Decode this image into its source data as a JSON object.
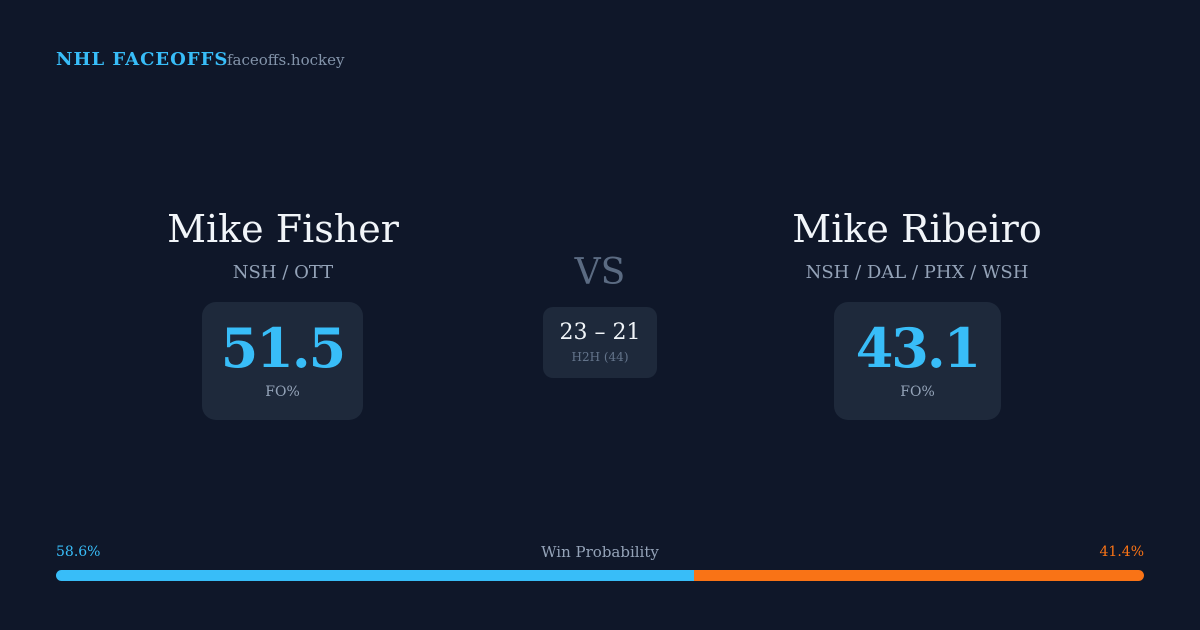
{
  "header": {
    "brand": "NHL FACEOFFS",
    "site": "faceoffs.hockey"
  },
  "players": [
    {
      "name": "Mike Fisher",
      "teams": "NSH / OTT",
      "fo_pct": 51.5,
      "fo_label": "FO%"
    },
    {
      "name": "Mike Ribeiro",
      "teams": "NSH / DAL / PHX / WSH",
      "fo_pct": 43.1,
      "fo_label": "FO%"
    }
  ],
  "versus": "VS",
  "head_to_head": {
    "score": "23 – 21",
    "label": "H2H (44)"
  },
  "win_probability": {
    "label": "Win Probability",
    "values": [
      58.6,
      41.4
    ],
    "value_labels": [
      "58.6%",
      "41.4%"
    ],
    "colors": [
      "#38bdf8",
      "#f97316"
    ]
  }
}
